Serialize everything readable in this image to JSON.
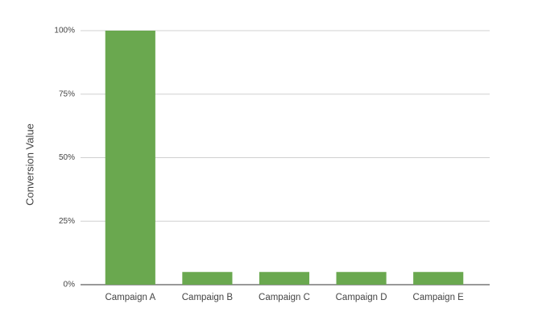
{
  "chart_data": {
    "type": "bar",
    "y_label": "Conversion Value",
    "categories": [
      "Campaign A",
      "Campaign B",
      "Campaign C",
      "Campaign D",
      "Campaign E"
    ],
    "values": [
      100,
      5,
      5,
      5,
      5
    ],
    "color": "#6aa84f",
    "ylim": [
      0,
      100
    ],
    "yticks": [
      {
        "value": 0,
        "label": "0%"
      },
      {
        "value": 25,
        "label": "25%"
      },
      {
        "value": 50,
        "label": "50%"
      },
      {
        "value": 75,
        "label": "75%"
      },
      {
        "value": 100,
        "label": "100%"
      }
    ],
    "grid": true
  }
}
